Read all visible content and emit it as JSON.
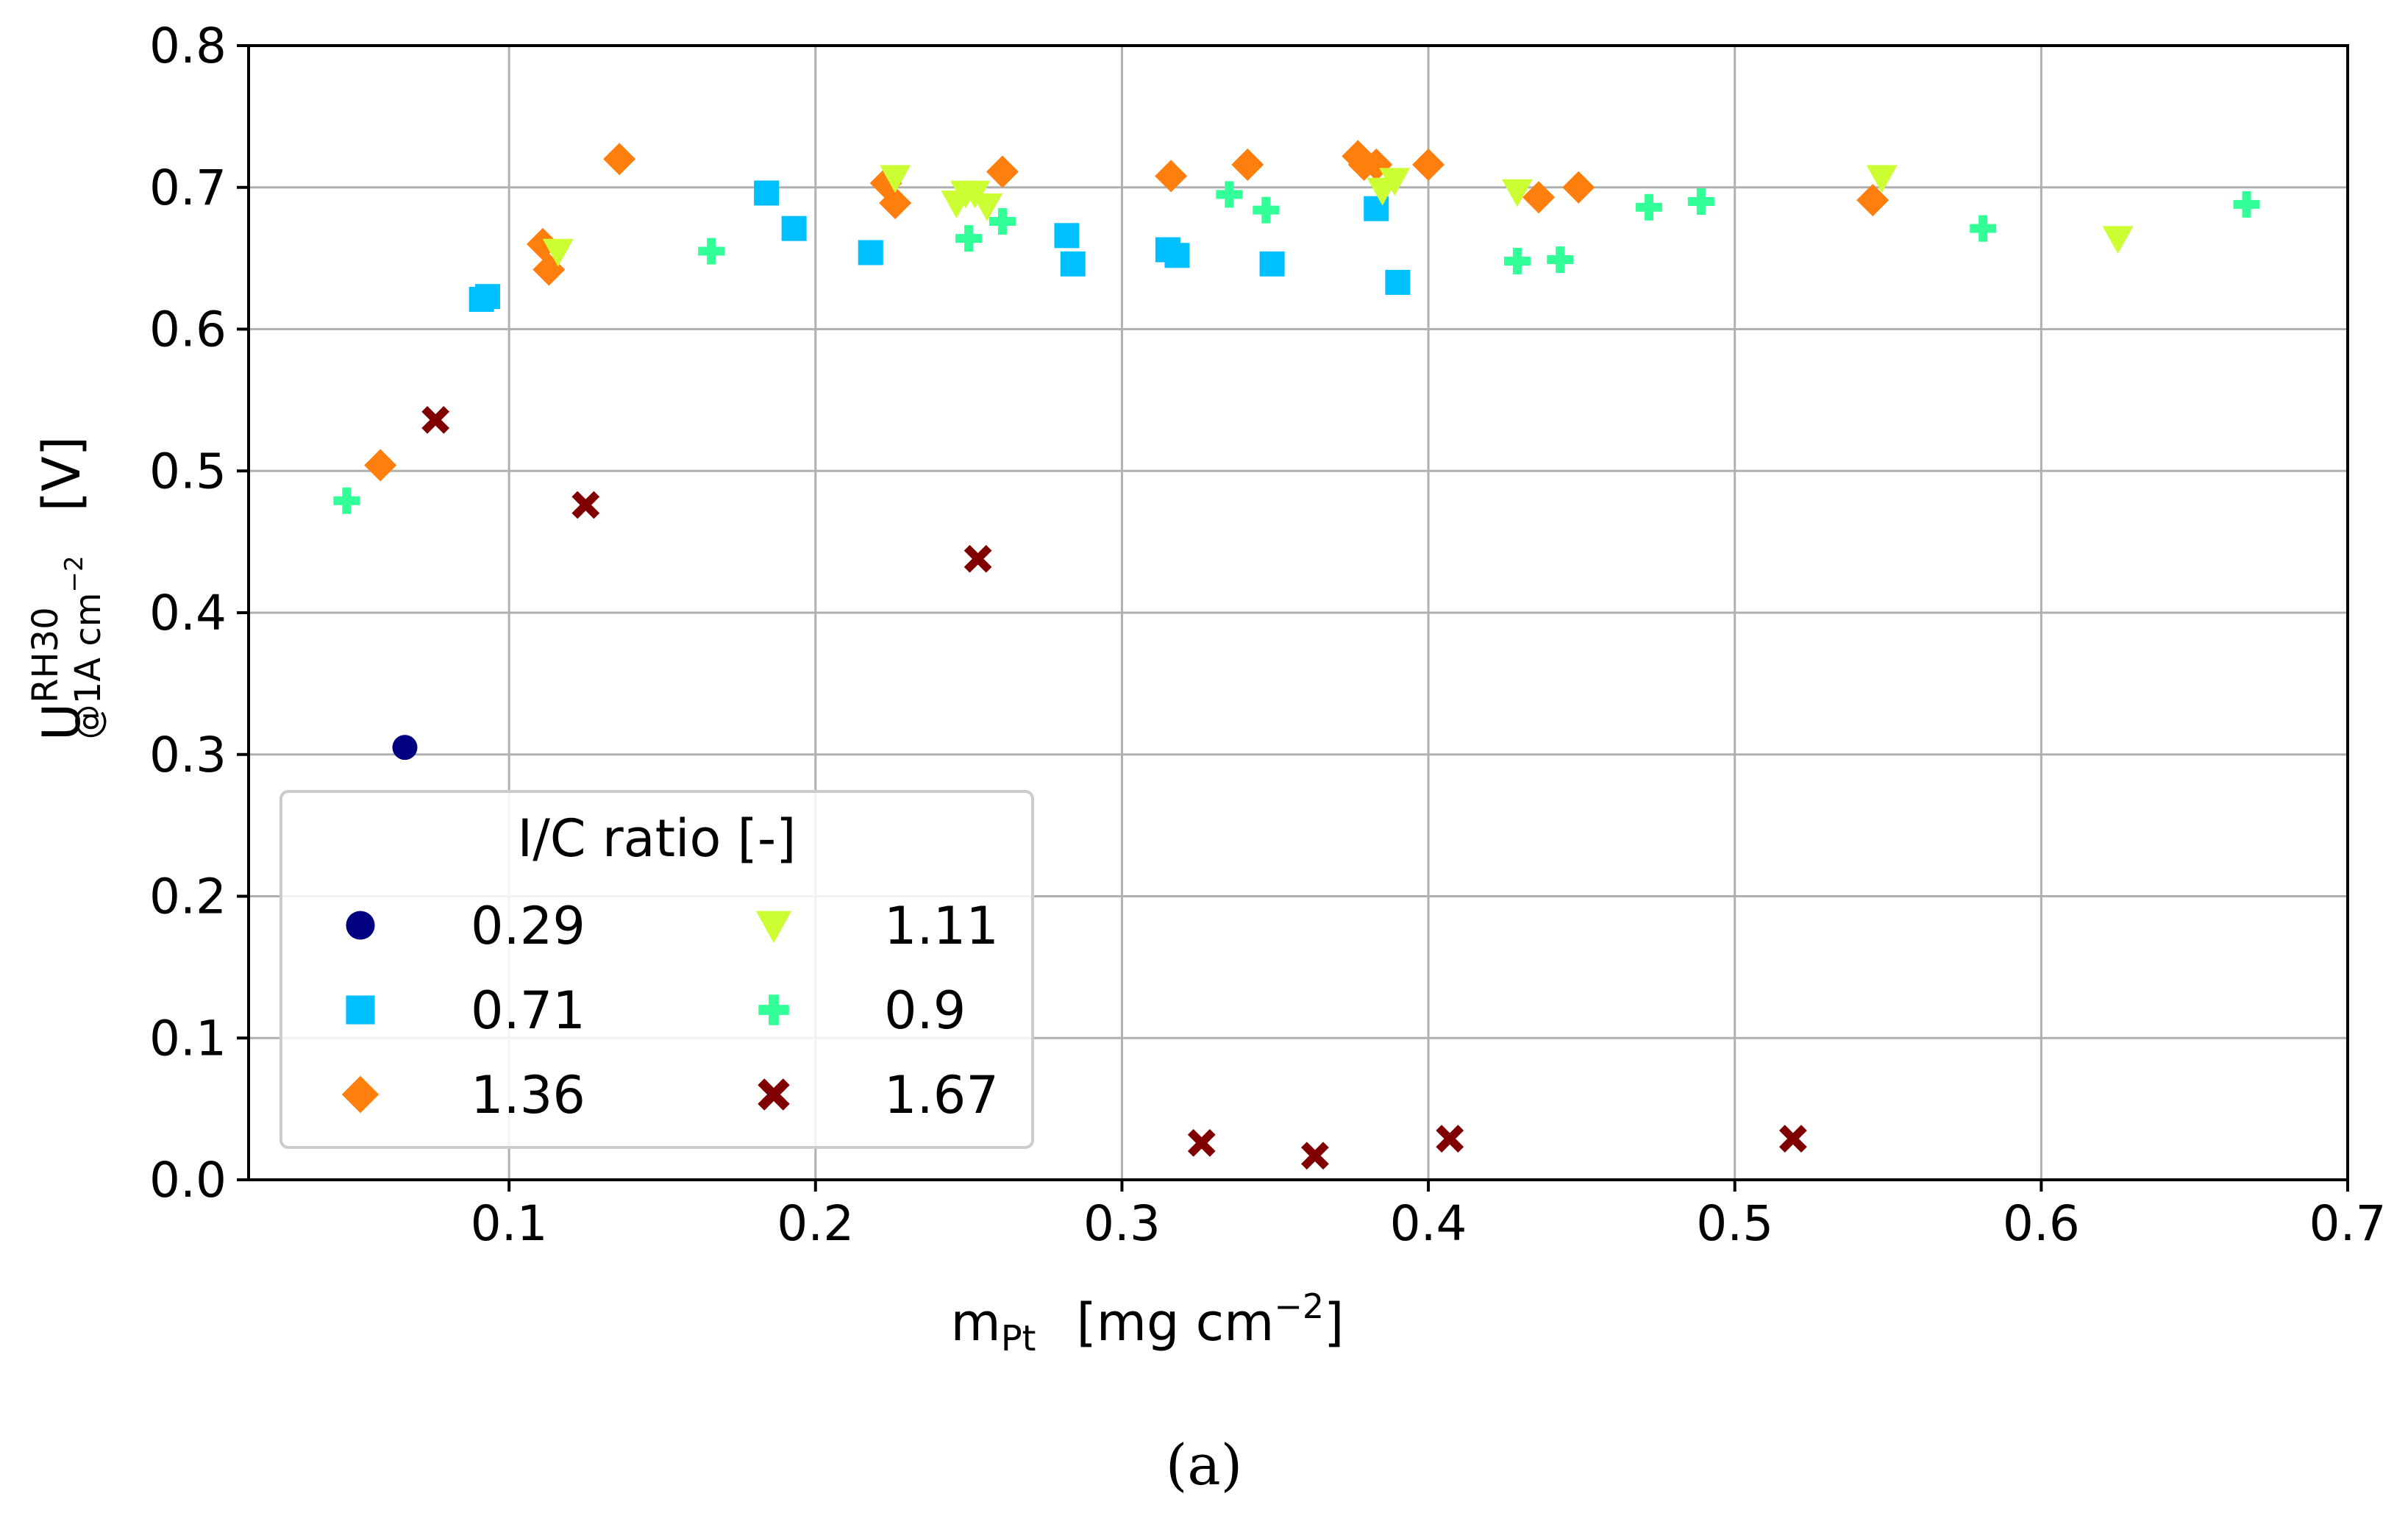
{
  "chart_data": {
    "type": "scatter",
    "title": "",
    "caption": "(a)",
    "xlabel": {
      "main": "m",
      "sub": "Pt",
      "unit_pre": "[mg cm",
      "unit_sup": "−2",
      "unit_post": "]"
    },
    "ylabel": {
      "main": "U",
      "sup": "RH30",
      "sub": "@1A cm",
      "sub_sup": "−2",
      "unit": "[V]"
    },
    "xlim": [
      0.015,
      0.7
    ],
    "ylim": [
      0.0,
      0.8
    ],
    "xticks": [
      0.1,
      0.2,
      0.3,
      0.4,
      0.5,
      0.6,
      0.7
    ],
    "xtick_labels": [
      "0.1",
      "0.2",
      "0.3",
      "0.4",
      "0.5",
      "0.6",
      "0.7"
    ],
    "yticks": [
      0.0,
      0.1,
      0.2,
      0.3,
      0.4,
      0.5,
      0.6,
      0.7,
      0.8
    ],
    "ytick_labels": [
      "0.0",
      "0.1",
      "0.2",
      "0.3",
      "0.4",
      "0.5",
      "0.6",
      "0.7",
      "0.8"
    ],
    "grid": true,
    "legend": {
      "title": "I/C ratio [-]",
      "placement": "lower-left",
      "columns": 2
    },
    "series": [
      {
        "name": "0.29",
        "marker": "circle",
        "color": "#000080",
        "points": [
          [
            0.066,
            0.305
          ]
        ]
      },
      {
        "name": "0.71",
        "marker": "square",
        "color": "#00BFFF",
        "points": [
          [
            0.091,
            0.621
          ],
          [
            0.093,
            0.623
          ],
          [
            0.184,
            0.696
          ],
          [
            0.193,
            0.671
          ],
          [
            0.218,
            0.654
          ],
          [
            0.282,
            0.666
          ],
          [
            0.284,
            0.646
          ],
          [
            0.315,
            0.656
          ],
          [
            0.318,
            0.652
          ],
          [
            0.349,
            0.646
          ],
          [
            0.383,
            0.685
          ],
          [
            0.39,
            0.633
          ]
        ]
      },
      {
        "name": "1.36",
        "marker": "diamond",
        "color": "#FF7F0E",
        "points": [
          [
            0.058,
            0.504
          ],
          [
            0.111,
            0.66
          ],
          [
            0.113,
            0.642
          ],
          [
            0.136,
            0.72
          ],
          [
            0.223,
            0.703
          ],
          [
            0.226,
            0.689
          ],
          [
            0.261,
            0.711
          ],
          [
            0.316,
            0.708
          ],
          [
            0.341,
            0.716
          ],
          [
            0.377,
            0.722
          ],
          [
            0.379,
            0.716
          ],
          [
            0.383,
            0.716
          ],
          [
            0.4,
            0.716
          ],
          [
            0.436,
            0.693
          ],
          [
            0.449,
            0.7
          ],
          [
            0.545,
            0.691
          ]
        ]
      },
      {
        "name": "1.11",
        "marker": "triangle-down",
        "color": "#CCFF33",
        "points": [
          [
            0.116,
            0.655
          ],
          [
            0.226,
            0.707
          ],
          [
            0.246,
            0.689
          ],
          [
            0.249,
            0.696
          ],
          [
            0.252,
            0.696
          ],
          [
            0.256,
            0.687
          ],
          [
            0.385,
            0.698
          ],
          [
            0.389,
            0.705
          ],
          [
            0.429,
            0.697
          ],
          [
            0.548,
            0.707
          ],
          [
            0.625,
            0.664
          ]
        ]
      },
      {
        "name": "0.9",
        "marker": "plus",
        "color": "#33FF99",
        "points": [
          [
            0.047,
            0.479
          ],
          [
            0.166,
            0.655
          ],
          [
            0.25,
            0.664
          ],
          [
            0.261,
            0.676
          ],
          [
            0.335,
            0.695
          ],
          [
            0.347,
            0.684
          ],
          [
            0.429,
            0.648
          ],
          [
            0.443,
            0.649
          ],
          [
            0.472,
            0.686
          ],
          [
            0.489,
            0.69
          ],
          [
            0.581,
            0.671
          ],
          [
            0.667,
            0.688
          ]
        ]
      },
      {
        "name": "1.67",
        "marker": "x",
        "color": "#800000",
        "points": [
          [
            0.076,
            0.536
          ],
          [
            0.125,
            0.476
          ],
          [
            0.253,
            0.438
          ],
          [
            0.326,
            0.026
          ],
          [
            0.363,
            0.017
          ],
          [
            0.407,
            0.029
          ],
          [
            0.519,
            0.029
          ]
        ]
      }
    ]
  }
}
